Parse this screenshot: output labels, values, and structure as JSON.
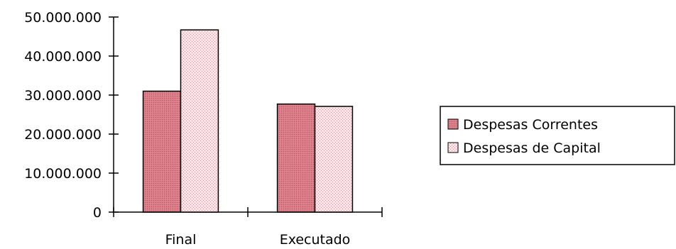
{
  "chart_data": {
    "type": "bar",
    "categories": [
      "Final",
      "Executado"
    ],
    "series": [
      {
        "name": "Despesas Correntes",
        "values": [
          31000000,
          27700000
        ],
        "color": "#d97a85",
        "pattern": "dense-dots"
      },
      {
        "name": "Despesas de Capital",
        "values": [
          46700000,
          27100000
        ],
        "color": "#f7d7dc",
        "pattern": "light-dots"
      }
    ],
    "yticks": [
      "0",
      "10.000.000",
      "20.000.000",
      "30.000.000",
      "40.000.000",
      "50.000.000"
    ],
    "ylim": [
      0,
      50000000
    ],
    "legend_position": "right",
    "grid": false
  }
}
